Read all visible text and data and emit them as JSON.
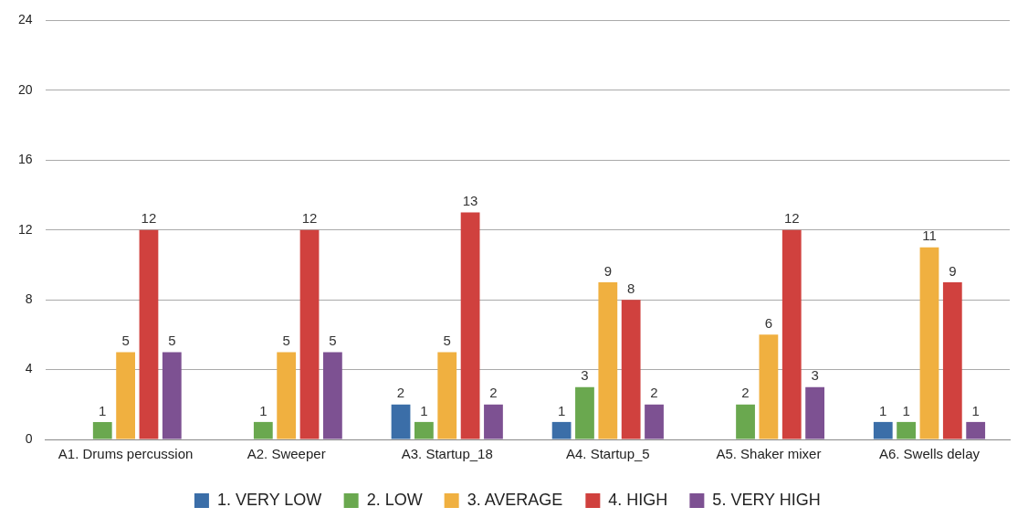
{
  "chart_data": {
    "type": "bar",
    "categories": [
      "A1. Drums percussion",
      "A2. Sweeper",
      "A3. Startup_18",
      "A4. Startup_5",
      "A5. Shaker mixer",
      "A6. Swells delay"
    ],
    "series": [
      {
        "name": "1. VERY LOW",
        "color": "#3b6ea8",
        "values": [
          null,
          null,
          2,
          1,
          null,
          1
        ]
      },
      {
        "name": "2. LOW",
        "color": "#6aa84f",
        "values": [
          1,
          1,
          1,
          3,
          2,
          1
        ]
      },
      {
        "name": "3. AVERAGE",
        "color": "#f0b040",
        "values": [
          5,
          5,
          5,
          9,
          6,
          11
        ]
      },
      {
        "name": "4. HIGH",
        "color": "#d0413e",
        "values": [
          12,
          12,
          13,
          8,
          12,
          9
        ]
      },
      {
        "name": "5. VERY HIGH",
        "color": "#7d5192",
        "values": [
          5,
          5,
          2,
          2,
          3,
          1
        ]
      }
    ],
    "ylim": [
      0,
      24
    ],
    "yticks": [
      0,
      4,
      8,
      12,
      16,
      20,
      24
    ],
    "grid": "y",
    "legend": "bottom",
    "data_labels": true
  }
}
